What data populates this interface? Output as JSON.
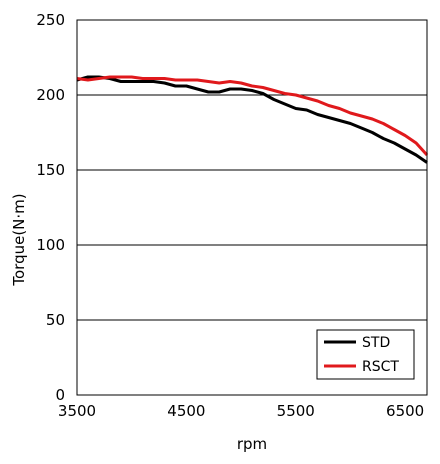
{
  "chart_data": {
    "type": "line",
    "xlabel": "rpm",
    "ylabel": "Torque(N·m)",
    "xlim": [
      3500,
      6700
    ],
    "ylim": [
      0,
      250
    ],
    "xticks": [
      "3500",
      "4500",
      "5500",
      "6500"
    ],
    "yticks": [
      "0",
      "50",
      "100",
      "150",
      "200",
      "250"
    ],
    "grid": "horizontal",
    "legend_position": "bottom-right",
    "series": [
      {
        "name": "STD",
        "color": "#000000",
        "x": [
          3500,
          3600,
          3700,
          3800,
          3900,
          4000,
          4100,
          4200,
          4300,
          4400,
          4500,
          4600,
          4700,
          4800,
          4900,
          5000,
          5100,
          5200,
          5300,
          5400,
          5500,
          5600,
          5700,
          5800,
          5900,
          6000,
          6100,
          6200,
          6300,
          6400,
          6500,
          6600,
          6700
        ],
        "values": [
          210,
          212,
          212,
          211,
          209,
          209,
          209,
          209,
          208,
          206,
          206,
          204,
          202,
          202,
          204,
          204,
          203,
          201,
          197,
          194,
          191,
          190,
          187,
          185,
          183,
          181,
          178,
          175,
          171,
          168,
          164,
          160,
          155
        ]
      },
      {
        "name": "RSCT",
        "color": "#e0191c",
        "x": [
          3500,
          3600,
          3700,
          3800,
          3900,
          4000,
          4100,
          4200,
          4300,
          4400,
          4500,
          4600,
          4700,
          4800,
          4900,
          5000,
          5100,
          5200,
          5300,
          5400,
          5500,
          5600,
          5700,
          5800,
          5900,
          6000,
          6100,
          6200,
          6300,
          6400,
          6500,
          6600,
          6700
        ],
        "values": [
          211,
          210,
          211,
          212,
          212,
          212,
          211,
          211,
          211,
          210,
          210,
          210,
          209,
          208,
          209,
          208,
          206,
          205,
          203,
          201,
          200,
          198,
          196,
          193,
          191,
          188,
          186,
          184,
          181,
          177,
          173,
          168,
          160
        ]
      }
    ]
  }
}
